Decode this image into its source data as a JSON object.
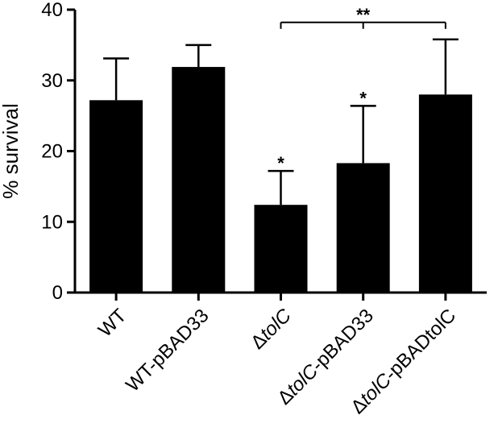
{
  "chart_data": {
    "type": "bar",
    "title": "",
    "xlabel": "",
    "ylabel": "% survival",
    "ylim": [
      0,
      40
    ],
    "yticks": [
      0,
      10,
      20,
      30,
      40
    ],
    "grid": false,
    "bar_color": "#000000",
    "categories": [
      {
        "prefix": "",
        "italic": "",
        "suffix": "WT"
      },
      {
        "prefix": "",
        "italic": "",
        "suffix": "WT-pBAD33"
      },
      {
        "prefix": "Δ",
        "italic": "tolC",
        "suffix": ""
      },
      {
        "prefix": "Δ",
        "italic": "tolC",
        "suffix": "-pBAD33"
      },
      {
        "prefix": "Δ",
        "italic": "tolC",
        "suffix": "-pBADtolC"
      }
    ],
    "values": [
      27.2,
      31.9,
      12.4,
      18.3,
      28.0
    ],
    "errors": [
      5.9,
      3.1,
      4.8,
      8.1,
      7.8
    ],
    "significance": [
      "",
      "",
      "*",
      "*",
      ""
    ],
    "brackets": [
      {
        "from": 2,
        "to": 4,
        "label": "**",
        "y": 38.2
      }
    ]
  }
}
